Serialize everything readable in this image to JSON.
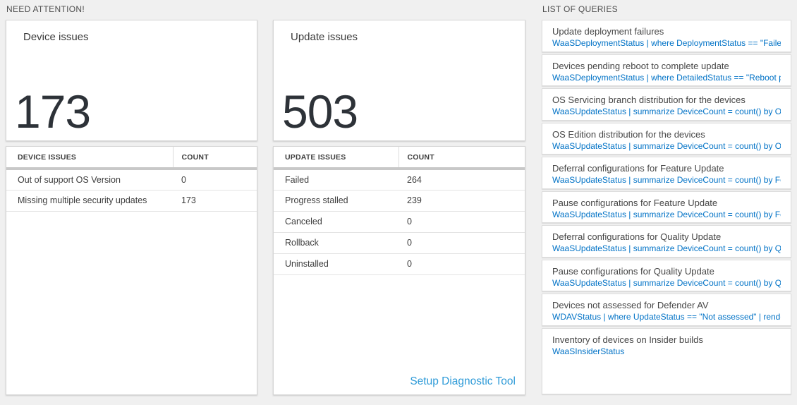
{
  "sections": {
    "need_attention": "NEED ATTENTION!",
    "list_of_queries": "LIST OF QUERIES"
  },
  "device_tile": {
    "title": "Device issues",
    "count": "173"
  },
  "update_tile": {
    "title": "Update issues",
    "count": "503"
  },
  "device_table": {
    "headers": [
      "DEVICE ISSUES",
      "COUNT"
    ],
    "rows": [
      [
        "Out of support OS Version",
        "0"
      ],
      [
        "Missing multiple security updates",
        "173"
      ]
    ]
  },
  "update_table": {
    "headers": [
      "UPDATE ISSUES",
      "COUNT"
    ],
    "rows": [
      [
        "Failed",
        "264"
      ],
      [
        "Progress stalled",
        "239"
      ],
      [
        "Canceled",
        "0"
      ],
      [
        "Rollback",
        "0"
      ],
      [
        "Uninstalled",
        "0"
      ]
    ],
    "footer_link": "Setup Diagnostic Tool"
  },
  "queries": {
    "items": [
      {
        "title": "Update deployment failures",
        "query": "WaaSDeploymentStatus | where DeploymentStatus == \"Failed\" |..."
      },
      {
        "title": "Devices pending reboot to complete update",
        "query": "WaaSDeploymentStatus | where DetailedStatus == \"Reboot pend..."
      },
      {
        "title": "OS Servicing branch distribution for the devices",
        "query": "WaaSUpdateStatus | summarize DeviceCount = count() by OSSer..."
      },
      {
        "title": "OS Edition distribution for the devices",
        "query": "WaaSUpdateStatus | summarize DeviceCount = count() by OSEdit..."
      },
      {
        "title": "Deferral configurations for Feature Update",
        "query": "WaaSUpdateStatus | summarize DeviceCount = count() by Featur..."
      },
      {
        "title": "Pause configurations for Feature Update",
        "query": "WaaSUpdateStatus | summarize DeviceCount = count() by Featur..."
      },
      {
        "title": "Deferral configurations for Quality Update",
        "query": "WaaSUpdateStatus | summarize DeviceCount = count() by Qualit..."
      },
      {
        "title": "Pause configurations for Quality Update",
        "query": "WaaSUpdateStatus | summarize DeviceCount = count() by Qualit..."
      },
      {
        "title": "Devices not assessed for Defender AV",
        "query": "WDAVStatus | where UpdateStatus == \"Not assessed\" | render ta..."
      },
      {
        "title": "Inventory of devices on Insider builds",
        "query": "WaaSInsiderStatus"
      }
    ]
  },
  "colors": {
    "query_blue": "#0072c6",
    "link_blue": "#2f9bd8"
  }
}
